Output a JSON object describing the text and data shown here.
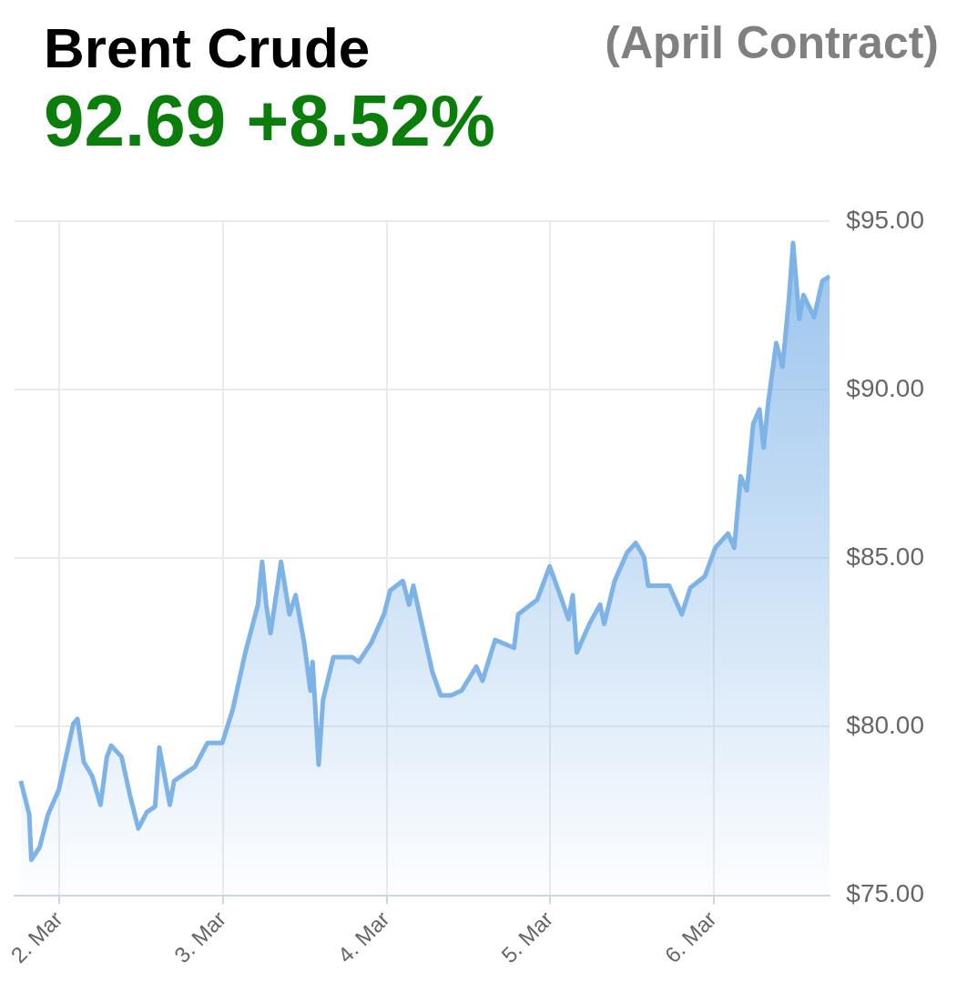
{
  "chart_data": {
    "type": "area",
    "title": "Brent Crude",
    "subtitle": "92.69 +8.52%",
    "annotations": [
      "(April Contract)"
    ],
    "x": [
      "--03-01T18:17",
      "--03-01T19:32",
      "--03-01T19:51",
      "--03-01T21:04",
      "--03-01T22:18",
      "--03-01T23:51",
      "--03-02T00:46",
      "--03-02T02:00",
      "--03-02T02:37",
      "--03-02T03:33",
      "--03-02T04:47",
      "--03-02T06:00",
      "--03-02T06:56",
      "--03-02T07:34",
      "--03-02T09:06",
      "--03-02T10:19",
      "--03-02T11:33",
      "--03-02T12:48",
      "--03-02T14:01",
      "--03-02T14:38",
      "--03-02T16:11",
      "--03-02T16:48",
      "--03-02T19:52",
      "--03-02T21:43",
      "--03-02T23:53",
      "--03-03T01:25",
      "--03-03T03:16",
      "--03-03T05:07",
      "--03-03T05:44",
      "--03-03T06:20",
      "--03-03T06:58",
      "--03-03T08:30",
      "--03-03T09:45",
      "--03-03T10:39",
      "--03-03T11:54",
      "--03-03T12:49",
      "--03-03T13:08",
      "--03-03T14:02",
      "--03-03T14:40",
      "--03-03T16:12",
      "--03-03T18:58",
      "--03-03T19:55",
      "--03-03T21:46",
      "--03-03T23:37",
      "--03-04T00:32",
      "--03-04T02:23",
      "--03-04T03:19",
      "--03-04T03:56",
      "--03-04T05:10",
      "--03-04T06:42",
      "--03-04T07:57",
      "--03-04T09:29",
      "--03-04T11:01",
      "--03-04T13:11",
      "--03-04T14:05",
      "--03-04T15:56",
      "--03-04T18:43",
      "--03-04T19:19",
      "--03-04T22:06",
      "--03-04T23:57",
      "--03-05T01:29",
      "--03-05T02:43",
      "--03-05T03:20",
      "--03-05T03:56",
      "--03-05T05:47",
      "--03-05T07:21",
      "--03-05T07:57",
      "--03-05T09:29",
      "--03-05T11:20",
      "--03-05T12:35",
      "--03-05T13:48",
      "--03-05T14:25",
      "--03-05T15:39",
      "--03-05T17:30",
      "--03-05T19:21",
      "--03-05T20:36",
      "--03-05T22:44",
      "--03-06T00:17",
      "--03-06T02:08",
      "--03-06T03:03",
      "--03-06T03:59",
      "--03-06T04:54",
      "--03-06T05:50",
      "--03-06T06:45",
      "--03-06T07:22",
      "--03-06T08:00",
      "--03-06T09:13",
      "--03-06T10:08",
      "--03-06T11:04",
      "--03-06T11:41",
      "--03-06T12:36",
      "--03-06T13:13",
      "--03-06T14:46",
      "--03-06T15:59",
      "--03-06T17:05"
    ],
    "series": [
      {
        "color": "#7eb3e8",
        "values": [
          78.39,
          77.4,
          76.05,
          76.42,
          77.4,
          78.11,
          78.95,
          80.08,
          80.23,
          78.95,
          78.53,
          77.68,
          79.1,
          79.44,
          79.1,
          77.97,
          76.98,
          77.46,
          77.63,
          79.38,
          77.68,
          78.39,
          78.81,
          79.52,
          79.52,
          80.51,
          82.2,
          83.62,
          84.89,
          83.62,
          82.77,
          84.89,
          83.33,
          83.9,
          82.49,
          81.07,
          81.92,
          78.87,
          80.79,
          82.06,
          82.06,
          81.92,
          82.49,
          83.33,
          84.04,
          84.32,
          83.62,
          84.18,
          83.05,
          81.64,
          80.93,
          80.93,
          81.07,
          81.78,
          81.36,
          82.57,
          82.34,
          83.33,
          83.76,
          84.75,
          83.9,
          83.19,
          83.9,
          82.2,
          83.05,
          83.62,
          83.05,
          84.32,
          85.17,
          85.45,
          85.03,
          84.18,
          84.18,
          84.18,
          83.33,
          84.12,
          84.46,
          85.31,
          85.73,
          85.31,
          87.43,
          87.01,
          88.98,
          89.41,
          88.28,
          89.55,
          91.38,
          90.68,
          92.66,
          94.35,
          92.09,
          92.8,
          92.15,
          93.22,
          93.36
        ]
      }
    ],
    "xlim": [
      "--03-01T17:23",
      "--03-06T17:05"
    ],
    "xticks": [
      {
        "value": "--03-02",
        "label": "2. Mar"
      },
      {
        "value": "--03-03",
        "label": "3. Mar"
      },
      {
        "value": "--03-04",
        "label": "4. Mar"
      },
      {
        "value": "--03-05",
        "label": "5. Mar"
      },
      {
        "value": "--03-06",
        "label": "6. Mar"
      }
    ],
    "ylim": [
      75,
      95
    ],
    "yticks": [
      {
        "value": 75,
        "label": "$75.00"
      },
      {
        "value": 80,
        "label": "$80.00"
      },
      {
        "value": 85,
        "label": "$85.00"
      },
      {
        "value": 90,
        "label": "$90.00"
      },
      {
        "value": 95,
        "label": "$95.00"
      }
    ],
    "grid": true,
    "legend": false,
    "marker": "none",
    "line_style": "solid"
  }
}
